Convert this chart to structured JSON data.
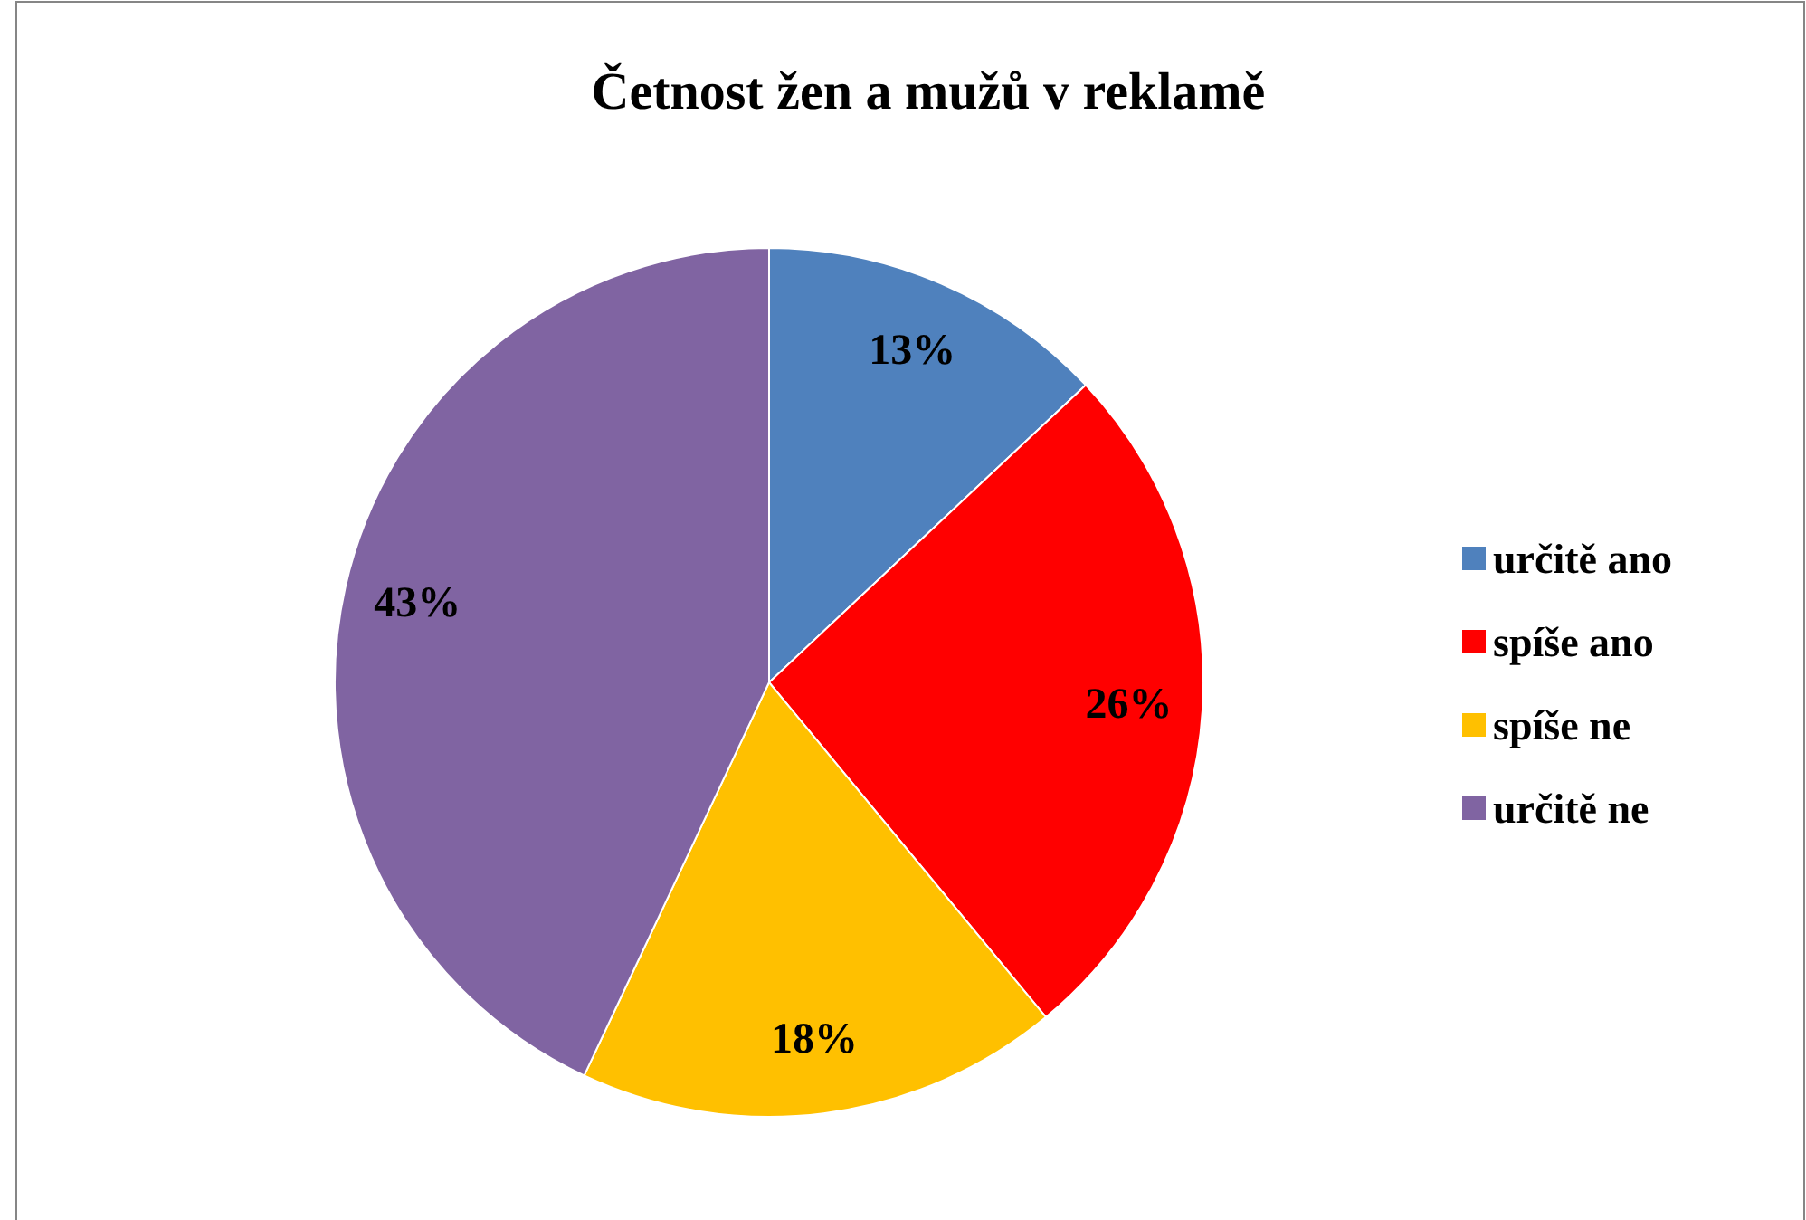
{
  "chart_data": {
    "type": "pie",
    "title": "Četnost žen a mužů v reklamě",
    "categories": [
      "určitě ano",
      "spíše ano",
      "spíše ne",
      "určitě ne"
    ],
    "values": [
      13,
      26,
      18,
      43
    ],
    "colors": [
      "#4f81bd",
      "#ff0000",
      "#ffc000",
      "#8064a2"
    ],
    "value_labels": [
      "13%",
      "26%",
      "18%",
      "43%"
    ],
    "legend": "right"
  }
}
